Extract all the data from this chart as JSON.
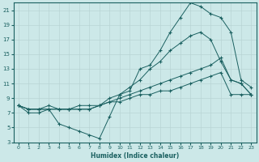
{
  "title": "",
  "xlabel": "Humidex (Indice chaleur)",
  "bg_color": "#cce8e8",
  "grid_color": "#b8d4d4",
  "line_color": "#1a6060",
  "xlim": [
    -0.5,
    23.5
  ],
  "ylim": [
    3,
    22
  ],
  "xticks": [
    0,
    1,
    2,
    3,
    4,
    5,
    6,
    7,
    8,
    9,
    10,
    11,
    12,
    13,
    14,
    15,
    16,
    17,
    18,
    19,
    20,
    21,
    22,
    23
  ],
  "yticks": [
    3,
    5,
    7,
    9,
    11,
    13,
    15,
    17,
    19,
    21
  ],
  "line1_x": [
    0,
    1,
    2,
    3,
    4,
    5,
    6,
    7,
    8,
    9,
    10,
    11,
    12,
    13,
    14,
    15,
    16,
    17,
    18,
    19,
    20,
    21,
    22,
    23
  ],
  "line1_y": [
    8,
    7,
    7,
    7.5,
    5.5,
    5,
    4.5,
    4,
    3.5,
    6.5,
    9.5,
    10,
    13,
    13.5,
    15.5,
    18,
    20,
    22,
    21.5,
    20.5,
    20,
    18,
    11.5,
    10.5
  ],
  "line2_x": [
    0,
    1,
    2,
    3,
    4,
    5,
    6,
    7,
    8,
    9,
    10,
    11,
    12,
    13,
    14,
    15,
    16,
    17,
    18,
    19,
    20,
    21,
    22,
    23
  ],
  "line2_y": [
    8,
    7.5,
    7.5,
    8,
    7.5,
    7.5,
    7.5,
    7.5,
    8,
    9,
    9.5,
    10.5,
    11.5,
    13,
    14,
    15.5,
    16.5,
    17.5,
    18,
    17,
    14,
    11.5,
    11,
    9.5
  ],
  "line3_x": [
    0,
    1,
    2,
    3,
    4,
    5,
    6,
    7,
    8,
    9,
    10,
    11,
    12,
    13,
    14,
    15,
    16,
    17,
    18,
    19,
    20,
    21,
    22,
    23
  ],
  "line3_y": [
    8,
    7.5,
    7.5,
    7.5,
    7.5,
    7.5,
    7.5,
    7.5,
    8,
    8.5,
    9,
    9.5,
    10,
    10.5,
    11,
    11.5,
    12,
    12.5,
    13,
    13.5,
    14.5,
    11.5,
    11,
    9.5
  ],
  "line4_x": [
    0,
    1,
    2,
    3,
    4,
    5,
    6,
    7,
    8,
    9,
    10,
    11,
    12,
    13,
    14,
    15,
    16,
    17,
    18,
    19,
    20,
    21,
    22,
    23
  ],
  "line4_y": [
    8,
    7.5,
    7.5,
    7.5,
    7.5,
    7.5,
    8,
    8,
    8,
    8.5,
    8.5,
    9,
    9.5,
    9.5,
    10,
    10,
    10.5,
    11,
    11.5,
    12,
    12.5,
    9.5,
    9.5,
    9.5
  ]
}
